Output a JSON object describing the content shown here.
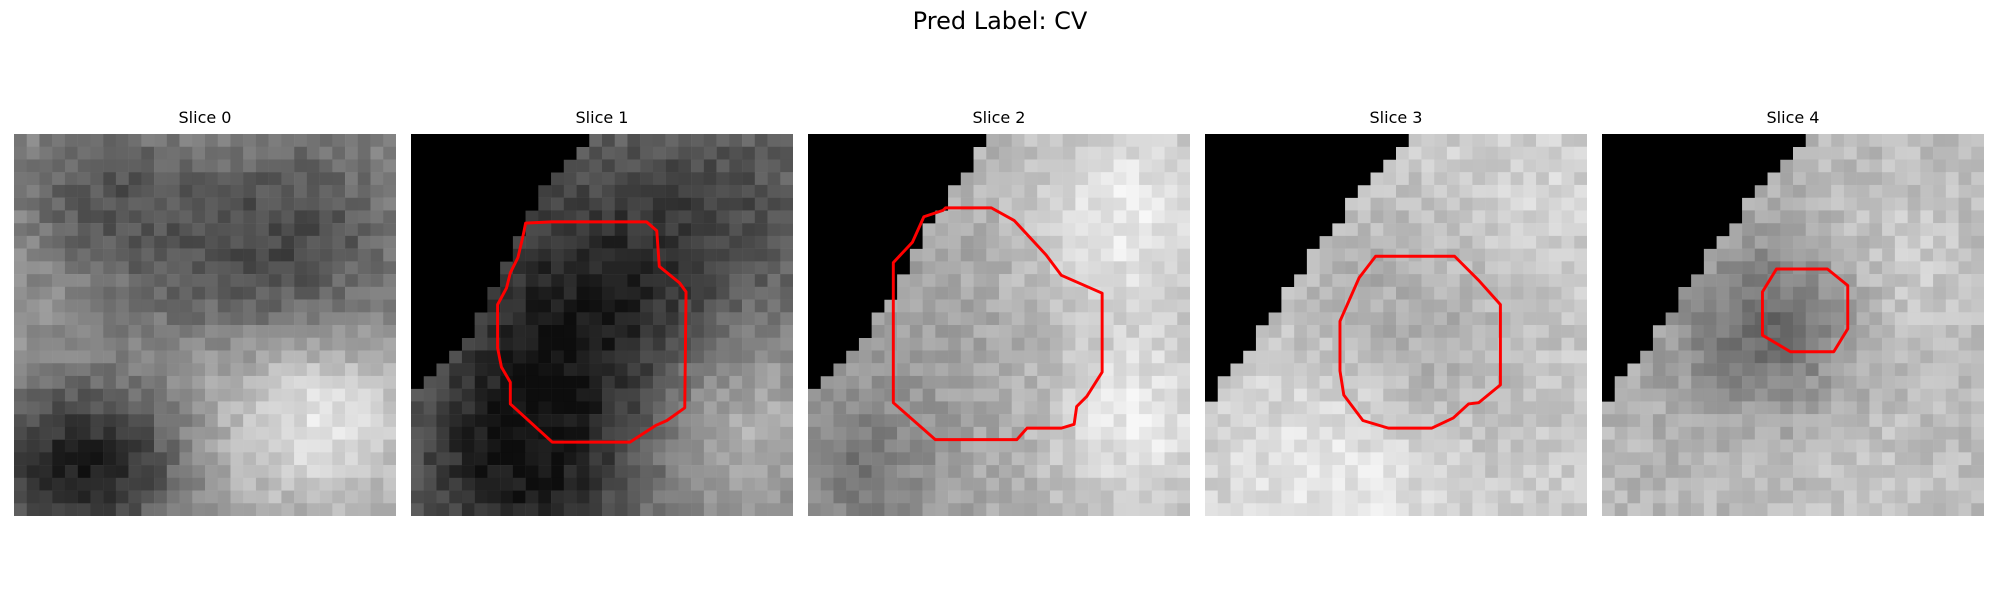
{
  "figure": {
    "title": "Pred Label: CV"
  },
  "panels": [
    {
      "title": "Slice 0",
      "has_contour": false,
      "mask_steps": [],
      "contour": [],
      "brightness": 0.62
    },
    {
      "title": "Slice 1",
      "has_contour": true,
      "mask_steps": [
        14,
        13,
        12,
        11,
        10,
        10,
        9,
        9,
        8,
        8,
        7,
        7,
        6,
        6,
        5,
        5,
        4,
        3,
        2,
        1,
        0,
        0,
        0,
        0,
        0,
        0,
        0,
        0,
        0,
        0
      ],
      "contour": [
        [
          9.0,
          7.0
        ],
        [
          11.0,
          6.9
        ],
        [
          18.5,
          6.9
        ],
        [
          19.3,
          7.6
        ],
        [
          19.5,
          10.4
        ],
        [
          21.1,
          11.7
        ],
        [
          21.6,
          12.4
        ],
        [
          21.5,
          21.5
        ],
        [
          20.1,
          22.5
        ],
        [
          19.2,
          22.9
        ],
        [
          17.2,
          24.2
        ],
        [
          11.1,
          24.2
        ],
        [
          7.8,
          21.2
        ],
        [
          7.8,
          19.5
        ],
        [
          7.1,
          18.3
        ],
        [
          6.8,
          16.8
        ],
        [
          6.8,
          13.4
        ],
        [
          7.5,
          12.1
        ],
        [
          7.8,
          10.9
        ],
        [
          8.4,
          9.7
        ],
        [
          8.8,
          8.0
        ]
      ],
      "brightness": 0.45
    },
    {
      "title": "Slice 2",
      "has_contour": true,
      "mask_steps": [
        14,
        13,
        13,
        12,
        11,
        11,
        10,
        9,
        9,
        8,
        8,
        7,
        7,
        6,
        5,
        5,
        4,
        3,
        2,
        1,
        0,
        0,
        0,
        0,
        0,
        0,
        0,
        0,
        0,
        0
      ],
      "contour": [
        [
          10.8,
          5.8
        ],
        [
          14.4,
          5.8
        ],
        [
          16.2,
          6.8
        ],
        [
          18.7,
          9.5
        ],
        [
          19.9,
          11.1
        ],
        [
          23.1,
          12.5
        ],
        [
          23.1,
          18.7
        ],
        [
          21.9,
          20.6
        ],
        [
          21.1,
          21.4
        ],
        [
          20.9,
          22.8
        ],
        [
          19.9,
          23.1
        ],
        [
          17.2,
          23.1
        ],
        [
          16.4,
          24.0
        ],
        [
          10.0,
          24.0
        ],
        [
          6.7,
          21.1
        ],
        [
          6.7,
          18.5
        ],
        [
          6.7,
          12.5
        ],
        [
          6.7,
          10.1
        ],
        [
          8.2,
          8.5
        ],
        [
          9.1,
          6.5
        ],
        [
          10.6,
          6.0
        ]
      ],
      "brightness": 0.68
    },
    {
      "title": "Slice 3",
      "has_contour": true,
      "mask_steps": [
        16,
        15,
        14,
        13,
        12,
        11,
        11,
        10,
        9,
        8,
        8,
        7,
        6,
        6,
        5,
        4,
        4,
        3,
        2,
        1,
        1,
        0,
        0,
        0,
        0,
        0,
        0,
        0,
        0,
        0
      ],
      "contour": [
        [
          13.4,
          9.6
        ],
        [
          19.6,
          9.6
        ],
        [
          21.5,
          11.5
        ],
        [
          23.2,
          13.4
        ],
        [
          23.2,
          19.7
        ],
        [
          21.5,
          21.1
        ],
        [
          20.7,
          21.2
        ],
        [
          19.5,
          22.3
        ],
        [
          17.8,
          23.1
        ],
        [
          14.4,
          23.1
        ],
        [
          12.4,
          22.5
        ],
        [
          10.9,
          20.5
        ],
        [
          10.6,
          18.6
        ],
        [
          10.6,
          14.7
        ],
        [
          12.1,
          11.3
        ]
      ],
      "brightness": 0.8
    },
    {
      "title": "Slice 4",
      "has_contour": true,
      "mask_steps": [
        16,
        15,
        14,
        13,
        12,
        11,
        11,
        10,
        9,
        8,
        8,
        7,
        6,
        6,
        5,
        4,
        4,
        3,
        2,
        1,
        1,
        0,
        0,
        0,
        0,
        0,
        0,
        0,
        0,
        0
      ],
      "contour": [
        [
          13.7,
          10.6
        ],
        [
          17.7,
          10.6
        ],
        [
          19.3,
          11.9
        ],
        [
          19.3,
          15.3
        ],
        [
          18.2,
          17.1
        ],
        [
          14.8,
          17.1
        ],
        [
          12.6,
          15.8
        ],
        [
          12.6,
          12.4
        ]
      ],
      "brightness": 0.72
    }
  ],
  "colors": {
    "contour": "#ff0000",
    "mask": "#000000",
    "background": "#ffffff"
  }
}
